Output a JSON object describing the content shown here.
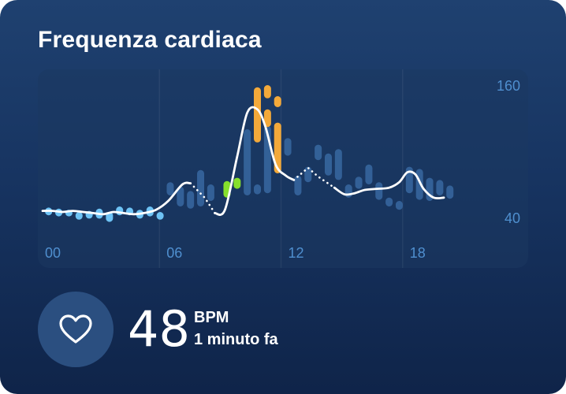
{
  "card": {
    "title": "Frequenza cardiaca"
  },
  "reading": {
    "value": "48",
    "unit": "BPM",
    "time": "1 minuto fa",
    "icon": "heart-icon"
  },
  "colors": {
    "resting": "#6ec3f5",
    "light": "#86e02c",
    "intense": "#f3a93a",
    "normal": "#35639a",
    "line": "#ffffff"
  },
  "chart_data": {
    "type": "line",
    "x_unit": "hour",
    "xlim": [
      0,
      24
    ],
    "ylim": [
      40,
      160
    ],
    "x_ticks": [
      "00",
      "06",
      "12",
      "18"
    ],
    "y_ticks": [
      "160",
      "40"
    ],
    "line": [
      {
        "x": 0.0,
        "y": 46
      },
      {
        "x": 0.5,
        "y": 46
      },
      {
        "x": 1.0,
        "y": 45
      },
      {
        "x": 1.5,
        "y": 46
      },
      {
        "x": 2.0,
        "y": 45
      },
      {
        "x": 2.5,
        "y": 44
      },
      {
        "x": 3.0,
        "y": 43
      },
      {
        "x": 3.5,
        "y": 45
      },
      {
        "x": 4.0,
        "y": 44
      },
      {
        "x": 4.5,
        "y": 43
      },
      {
        "x": 5.0,
        "y": 44
      },
      {
        "x": 5.6,
        "y": 47
      },
      {
        "x": 6.2,
        "y": 55
      },
      {
        "x": 6.9,
        "y": 70
      },
      {
        "x": 7.3,
        "y": 71
      }
    ],
    "line_gap": [
      {
        "x": 7.3,
        "y": 71
      },
      {
        "x": 8.0,
        "y": 58
      },
      {
        "x": 8.5,
        "y": 44
      }
    ],
    "line_2": [
      {
        "x": 8.5,
        "y": 44
      },
      {
        "x": 9.0,
        "y": 47
      },
      {
        "x": 9.6,
        "y": 95
      },
      {
        "x": 10.1,
        "y": 135
      },
      {
        "x": 10.6,
        "y": 138
      },
      {
        "x": 11.0,
        "y": 122
      },
      {
        "x": 11.5,
        "y": 88
      },
      {
        "x": 12.0,
        "y": 78
      },
      {
        "x": 12.4,
        "y": 74
      }
    ],
    "line_gap_2": [
      {
        "x": 12.4,
        "y": 74
      },
      {
        "x": 13.1,
        "y": 85
      },
      {
        "x": 13.6,
        "y": 77
      },
      {
        "x": 14.4,
        "y": 67
      }
    ],
    "line_3": [
      {
        "x": 14.4,
        "y": 67
      },
      {
        "x": 14.9,
        "y": 61
      },
      {
        "x": 15.4,
        "y": 62
      },
      {
        "x": 15.9,
        "y": 65
      },
      {
        "x": 16.5,
        "y": 66
      },
      {
        "x": 17.1,
        "y": 67
      },
      {
        "x": 17.6,
        "y": 72
      },
      {
        "x": 18.0,
        "y": 81
      },
      {
        "x": 18.4,
        "y": 79
      },
      {
        "x": 18.8,
        "y": 66
      },
      {
        "x": 19.3,
        "y": 58
      },
      {
        "x": 19.8,
        "y": 58
      }
    ],
    "bars": [
      {
        "x": 0.3,
        "low": 42,
        "high": 49,
        "zone": "resting"
      },
      {
        "x": 0.8,
        "low": 41,
        "high": 48,
        "zone": "resting"
      },
      {
        "x": 1.3,
        "low": 41,
        "high": 47,
        "zone": "resting"
      },
      {
        "x": 1.8,
        "low": 38,
        "high": 45,
        "zone": "resting"
      },
      {
        "x": 2.3,
        "low": 39,
        "high": 46,
        "zone": "resting"
      },
      {
        "x": 2.8,
        "low": 39,
        "high": 48,
        "zone": "resting"
      },
      {
        "x": 3.3,
        "low": 36,
        "high": 45,
        "zone": "resting"
      },
      {
        "x": 3.8,
        "low": 42,
        "high": 50,
        "zone": "resting"
      },
      {
        "x": 4.3,
        "low": 42,
        "high": 49,
        "zone": "resting"
      },
      {
        "x": 4.8,
        "low": 39,
        "high": 47,
        "zone": "resting"
      },
      {
        "x": 5.3,
        "low": 41,
        "high": 50,
        "zone": "resting"
      },
      {
        "x": 5.8,
        "low": 38,
        "high": 45,
        "zone": "resting"
      },
      {
        "x": 6.3,
        "low": 60,
        "high": 72,
        "zone": "normal"
      },
      {
        "x": 6.8,
        "low": 50,
        "high": 68,
        "zone": "normal"
      },
      {
        "x": 7.3,
        "low": 48,
        "high": 64,
        "zone": "normal"
      },
      {
        "x": 7.8,
        "low": 50,
        "high": 83,
        "zone": "normal"
      },
      {
        "x": 8.3,
        "low": 55,
        "high": 70,
        "zone": "normal"
      },
      {
        "x": 9.1,
        "low": 58,
        "high": 73,
        "zone": "light"
      },
      {
        "x": 9.6,
        "low": 66,
        "high": 76,
        "zone": "light"
      },
      {
        "x": 10.1,
        "low": 60,
        "high": 120,
        "zone": "normal"
      },
      {
        "x": 10.6,
        "low": 61,
        "high": 70,
        "zone": "normal"
      },
      {
        "x": 11.1,
        "low": 62,
        "high": 123,
        "zone": "normal"
      },
      {
        "x": 10.6,
        "low": 108,
        "high": 158,
        "zone": "intense"
      },
      {
        "x": 11.1,
        "low": 148,
        "high": 160,
        "zone": "intense"
      },
      {
        "x": 11.1,
        "low": 122,
        "high": 138,
        "zone": "intense"
      },
      {
        "x": 11.6,
        "low": 140,
        "high": 150,
        "zone": "intense"
      },
      {
        "x": 11.6,
        "low": 80,
        "high": 126,
        "zone": "intense"
      },
      {
        "x": 12.1,
        "low": 96,
        "high": 112,
        "zone": "normal"
      },
      {
        "x": 12.6,
        "low": 60,
        "high": 78,
        "zone": "normal"
      },
      {
        "x": 13.1,
        "low": 72,
        "high": 86,
        "zone": "normal"
      },
      {
        "x": 13.6,
        "low": 92,
        "high": 106,
        "zone": "normal"
      },
      {
        "x": 14.1,
        "low": 78,
        "high": 98,
        "zone": "normal"
      },
      {
        "x": 14.6,
        "low": 74,
        "high": 102,
        "zone": "normal"
      },
      {
        "x": 15.1,
        "low": 58,
        "high": 70,
        "zone": "normal"
      },
      {
        "x": 15.6,
        "low": 66,
        "high": 77,
        "zone": "normal"
      },
      {
        "x": 16.1,
        "low": 70,
        "high": 88,
        "zone": "normal"
      },
      {
        "x": 16.6,
        "low": 56,
        "high": 72,
        "zone": "normal"
      },
      {
        "x": 17.1,
        "low": 50,
        "high": 58,
        "zone": "normal"
      },
      {
        "x": 17.6,
        "low": 47,
        "high": 55,
        "zone": "normal"
      },
      {
        "x": 18.1,
        "low": 62,
        "high": 86,
        "zone": "normal"
      },
      {
        "x": 18.6,
        "low": 56,
        "high": 84,
        "zone": "normal"
      },
      {
        "x": 19.1,
        "low": 55,
        "high": 76,
        "zone": "normal"
      },
      {
        "x": 19.6,
        "low": 60,
        "high": 74,
        "zone": "normal"
      },
      {
        "x": 20.1,
        "low": 57,
        "high": 69,
        "zone": "normal"
      }
    ]
  }
}
